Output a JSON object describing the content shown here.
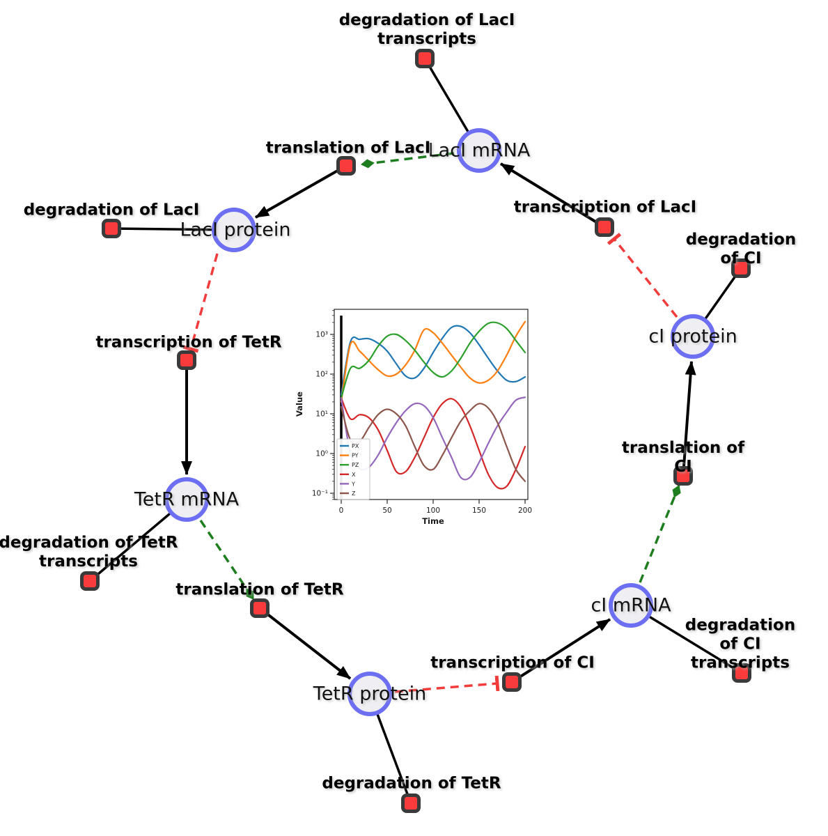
{
  "diagram": {
    "species": [
      {
        "id": "laci-mrna",
        "label": "LacI mRNA"
      },
      {
        "id": "laci-protein",
        "label": "LacI protein"
      },
      {
        "id": "tetr-mrna",
        "label": "TetR mRNA"
      },
      {
        "id": "tetr-protein",
        "label": "TetR protein"
      },
      {
        "id": "ci-mrna",
        "label": "cI mRNA"
      },
      {
        "id": "ci-protein",
        "label": "cI protein"
      }
    ],
    "reactions": [
      {
        "id": "degradation-laci-transcripts",
        "label": "degradation of LacI\ntranscripts"
      },
      {
        "id": "translation-laci",
        "label": "translation of LacI"
      },
      {
        "id": "transcription-laci",
        "label": "transcription of LacI"
      },
      {
        "id": "degradation-laci",
        "label": "degradation of LacI"
      },
      {
        "id": "degradation-ci",
        "label": "degradation of CI"
      },
      {
        "id": "transcription-tetr",
        "label": "transcription of TetR"
      },
      {
        "id": "translation-ci",
        "label": "translation of CI"
      },
      {
        "id": "degradation-tetr-transcripts",
        "label": "degradation of TetR\ntranscripts"
      },
      {
        "id": "translation-tetr",
        "label": "translation of TetR"
      },
      {
        "id": "transcription-ci",
        "label": "transcription of CI"
      },
      {
        "id": "degradation-ci-transcripts",
        "label": "degradation of CI\ntranscripts"
      },
      {
        "id": "degradation-tetr",
        "label": "degradation of TetR"
      }
    ],
    "colors": {
      "node_border": "#6d6ff2",
      "node_fill": "#efeff3",
      "reaction_fill": "#fa3b3b",
      "reaction_border": "#3a3a3a",
      "edge": "#000000",
      "modifier_edge": "#1e7d1e",
      "inhibition_edge": "#f23b3b"
    }
  },
  "chart_data": {
    "type": "line",
    "title": "",
    "xlabel": "Time",
    "ylabel": "Value",
    "xlim": [
      -8,
      208
    ],
    "ylog": true,
    "ylim_log10": [
      -1.16,
      3.63
    ],
    "xticks": [
      0,
      50,
      100,
      150,
      200
    ],
    "ytick_log10": [
      -1,
      0,
      1,
      2,
      3
    ],
    "ytick_labels": [
      "10⁻¹",
      "10⁰",
      "10¹",
      "10²",
      "10³"
    ],
    "axvline_x": 0,
    "legend_position": "lower left",
    "grid": false,
    "x": [
      0,
      10,
      20,
      30,
      40,
      50,
      60,
      70,
      80,
      90,
      100,
      110,
      120,
      130,
      140,
      150,
      160,
      170,
      180,
      190,
      200
    ],
    "series": [
      {
        "name": "PX",
        "color": "#1f77b4",
        "values": [
          30,
          650,
          750,
          780,
          600,
          380,
          180,
          90,
          80,
          140,
          350,
          800,
          1500,
          1600,
          1100,
          550,
          250,
          120,
          70,
          65,
          85
        ]
      },
      {
        "name": "PY",
        "color": "#ff7f0e",
        "values": [
          20,
          560,
          380,
          220,
          130,
          90,
          100,
          170,
          400,
          1300,
          1100,
          600,
          300,
          150,
          80,
          60,
          70,
          120,
          300,
          900,
          2100
        ]
      },
      {
        "name": "PZ",
        "color": "#2ca02c",
        "values": [
          25,
          140,
          140,
          220,
          500,
          900,
          1000,
          700,
          400,
          200,
          110,
          85,
          120,
          250,
          600,
          1200,
          1900,
          1950,
          1400,
          700,
          350
        ]
      },
      {
        "name": "X",
        "color": "#d62728",
        "values": [
          25,
          7.5,
          9.5,
          8,
          4,
          1.2,
          0.35,
          0.35,
          0.8,
          2.5,
          8,
          18,
          24,
          15,
          5,
          1.2,
          0.3,
          0.14,
          0.15,
          0.4,
          1.5
        ]
      },
      {
        "name": "Y",
        "color": "#9467bd",
        "values": [
          25,
          1,
          0.42,
          0.45,
          0.9,
          2.5,
          6,
          12,
          18,
          16,
          8,
          2.5,
          0.8,
          0.25,
          0.25,
          0.6,
          1.8,
          5,
          11,
          22,
          26
        ]
      },
      {
        "name": "Z",
        "color": "#8c564b",
        "values": [
          15,
          2.2,
          2,
          4.5,
          9.5,
          13,
          10,
          5,
          1.5,
          0.5,
          0.4,
          0.9,
          2.5,
          6.5,
          12,
          18,
          14,
          6,
          1.5,
          0.4,
          0.2
        ]
      }
    ]
  }
}
